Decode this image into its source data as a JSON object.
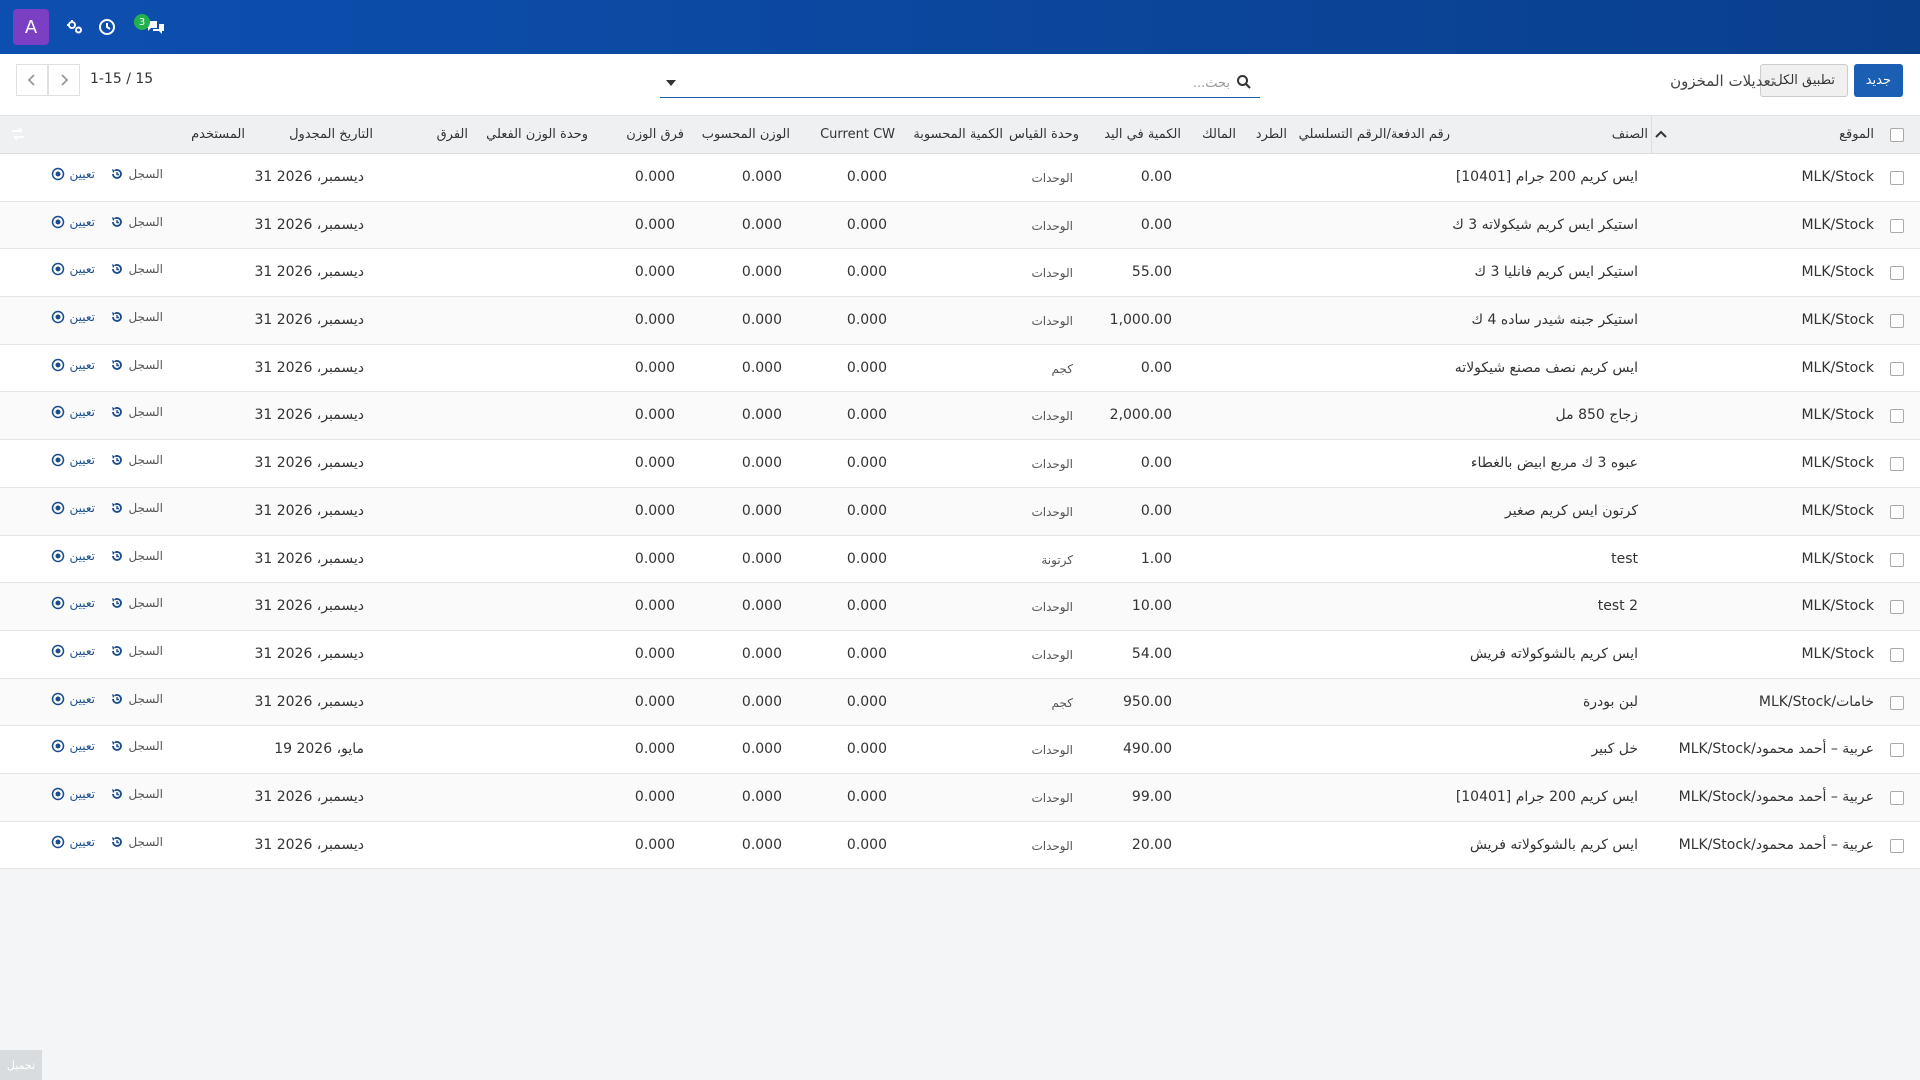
{
  "navbar": {
    "avatar_letter": "A",
    "icons": [
      "settings-icon",
      "clock-icon",
      "chat-icon"
    ],
    "chat_badge": "3",
    "accent": "#0d4fb0"
  },
  "control": {
    "new_label": "جديد",
    "apply_all_label": "تطبيق الكل",
    "title": "تعديلات المخزون",
    "search_placeholder": "بحث...",
    "pager_value": "1-15 / 15"
  },
  "table": {
    "headers": {
      "location": "الموقع",
      "product": "الصنف",
      "lot": "رقم الدفعة/الرقم التسلسلي",
      "package": "الطرد",
      "owner": "المالك",
      "on_hand": "الكمية في اليد",
      "uom": "وحدة القياس",
      "counted": "الكمية المحسوبة",
      "current_cw": "Current CW",
      "calc_weight": "الوزن المحسوب",
      "weight_diff": "فرق الوزن",
      "actual_weight_uom": "وحدة الوزن الفعلي",
      "difference": "الفرق",
      "scheduled_date": "التاريخ المجدول",
      "user": "المستخدم"
    },
    "action_history": "السجل",
    "action_assign": "تعيين",
    "rows": [
      {
        "location": "MLK/Stock",
        "product": "[10401] ايس كريم 200 جرام",
        "on_hand": "0.00",
        "uom": "الوحدات",
        "current_cw": "0.000",
        "calc_weight": "0.000",
        "weight_diff": "0.000",
        "date": "31 ديسمبر، 2026"
      },
      {
        "location": "MLK/Stock",
        "product": "استيكر ايس كريم شيكولاته 3 ك",
        "on_hand": "0.00",
        "uom": "الوحدات",
        "current_cw": "0.000",
        "calc_weight": "0.000",
        "weight_diff": "0.000",
        "date": "31 ديسمبر، 2026"
      },
      {
        "location": "MLK/Stock",
        "product": "استيكر ايس كريم فانليا 3 ك",
        "on_hand": "55.00",
        "uom": "الوحدات",
        "current_cw": "0.000",
        "calc_weight": "0.000",
        "weight_diff": "0.000",
        "date": "31 ديسمبر، 2026"
      },
      {
        "location": "MLK/Stock",
        "product": "استيكر جبنه شيدر ساده 4 ك",
        "on_hand": "1,000.00",
        "uom": "الوحدات",
        "current_cw": "0.000",
        "calc_weight": "0.000",
        "weight_diff": "0.000",
        "date": "31 ديسمبر، 2026"
      },
      {
        "location": "MLK/Stock",
        "product": "ايس كريم نصف مصنع شيكولاته",
        "on_hand": "0.00",
        "uom": "كجم",
        "current_cw": "0.000",
        "calc_weight": "0.000",
        "weight_diff": "0.000",
        "date": "31 ديسمبر، 2026"
      },
      {
        "location": "MLK/Stock",
        "product": "زجاج 850 مل",
        "on_hand": "2,000.00",
        "uom": "الوحدات",
        "current_cw": "0.000",
        "calc_weight": "0.000",
        "weight_diff": "0.000",
        "date": "31 ديسمبر، 2026"
      },
      {
        "location": "MLK/Stock",
        "product": "عبوه 3 ك مربع ابيض بالغطاء",
        "on_hand": "0.00",
        "uom": "الوحدات",
        "current_cw": "0.000",
        "calc_weight": "0.000",
        "weight_diff": "0.000",
        "date": "31 ديسمبر، 2026"
      },
      {
        "location": "MLK/Stock",
        "product": "كرتون ايس كريم صغير",
        "on_hand": "0.00",
        "uom": "الوحدات",
        "current_cw": "0.000",
        "calc_weight": "0.000",
        "weight_diff": "0.000",
        "date": "31 ديسمبر، 2026"
      },
      {
        "location": "MLK/Stock",
        "product": "test",
        "on_hand": "1.00",
        "uom": "كرتونة",
        "current_cw": "0.000",
        "calc_weight": "0.000",
        "weight_diff": "0.000",
        "date": "31 ديسمبر، 2026"
      },
      {
        "location": "MLK/Stock",
        "product": "test 2",
        "on_hand": "10.00",
        "uom": "الوحدات",
        "current_cw": "0.000",
        "calc_weight": "0.000",
        "weight_diff": "0.000",
        "date": "31 ديسمبر، 2026"
      },
      {
        "location": "MLK/Stock",
        "product": "ايس كريم بالشوكولاته فريش",
        "on_hand": "54.00",
        "uom": "الوحدات",
        "current_cw": "0.000",
        "calc_weight": "0.000",
        "weight_diff": "0.000",
        "date": "31 ديسمبر، 2026"
      },
      {
        "location": "MLK/Stock/خامات",
        "product": "لبن بودرة",
        "on_hand": "950.00",
        "uom": "كجم",
        "current_cw": "0.000",
        "calc_weight": "0.000",
        "weight_diff": "0.000",
        "date": "31 ديسمبر، 2026"
      },
      {
        "location": "MLK/Stock/عربية – أحمد محمود",
        "product": "خل كبير",
        "on_hand": "490.00",
        "uom": "الوحدات",
        "current_cw": "0.000",
        "calc_weight": "0.000",
        "weight_diff": "0.000",
        "date": "19 مايو، 2026"
      },
      {
        "location": "MLK/Stock/عربية – أحمد محمود",
        "product": "[10401] ايس كريم 200 جرام",
        "on_hand": "99.00",
        "uom": "الوحدات",
        "current_cw": "0.000",
        "calc_weight": "0.000",
        "weight_diff": "0.000",
        "date": "31 ديسمبر، 2026"
      },
      {
        "location": "MLK/Stock/عربية – أحمد محمود",
        "product": "ايس كريم بالشوكولاته فريش",
        "on_hand": "20.00",
        "uom": "الوحدات",
        "current_cw": "0.000",
        "calc_weight": "0.000",
        "weight_diff": "0.000",
        "date": "31 ديسمبر، 2026"
      }
    ]
  },
  "footer": {
    "load_label": "تحميل"
  }
}
